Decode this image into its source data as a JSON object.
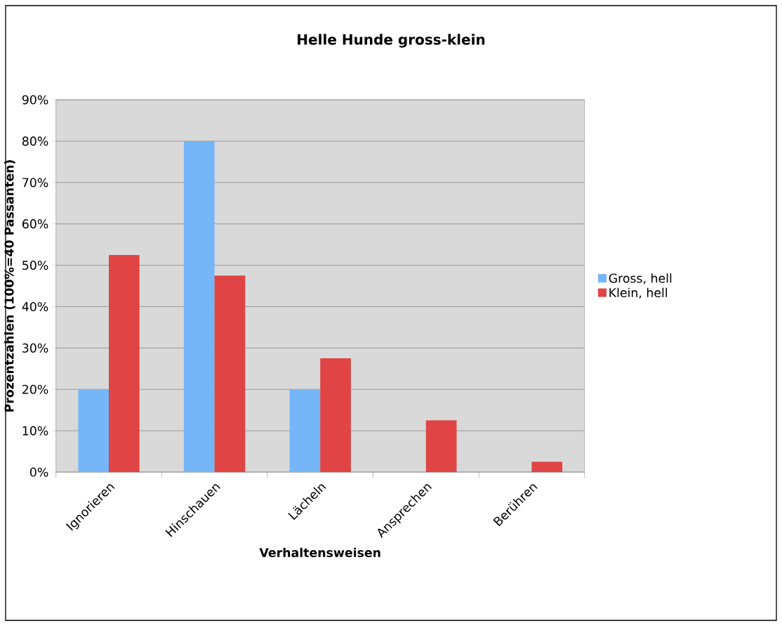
{
  "chart_data": {
    "type": "bar",
    "title": "Helle Hunde gross-klein",
    "xlabel": "Verhaltensweisen",
    "ylabel": "Prozentzahlen (100%=40 Passanten)",
    "categories": [
      "Ignorieren",
      "Hinschauen",
      "Lächeln",
      "Ansprechen",
      "Berühren"
    ],
    "series": [
      {
        "name": "Gross, hell",
        "color": "#74b6f8",
        "values": [
          20,
          80,
          20,
          0,
          0
        ]
      },
      {
        "name": "Klein, hell",
        "color": "#e04444",
        "values": [
          52.5,
          47.5,
          27.5,
          12.5,
          2.5
        ]
      }
    ],
    "ylim": [
      0,
      90
    ],
    "yticks": [
      {
        "value": 0,
        "label": "0%"
      },
      {
        "value": 10,
        "label": "10%"
      },
      {
        "value": 20,
        "label": "20%"
      },
      {
        "value": 30,
        "label": "30%"
      },
      {
        "value": 40,
        "label": "40%"
      },
      {
        "value": 50,
        "label": "50%"
      },
      {
        "value": 60,
        "label": "60%"
      },
      {
        "value": 70,
        "label": "70%"
      },
      {
        "value": 80,
        "label": "80%"
      },
      {
        "value": 90,
        "label": "90%"
      }
    ],
    "grid": "y",
    "legend": "right"
  }
}
